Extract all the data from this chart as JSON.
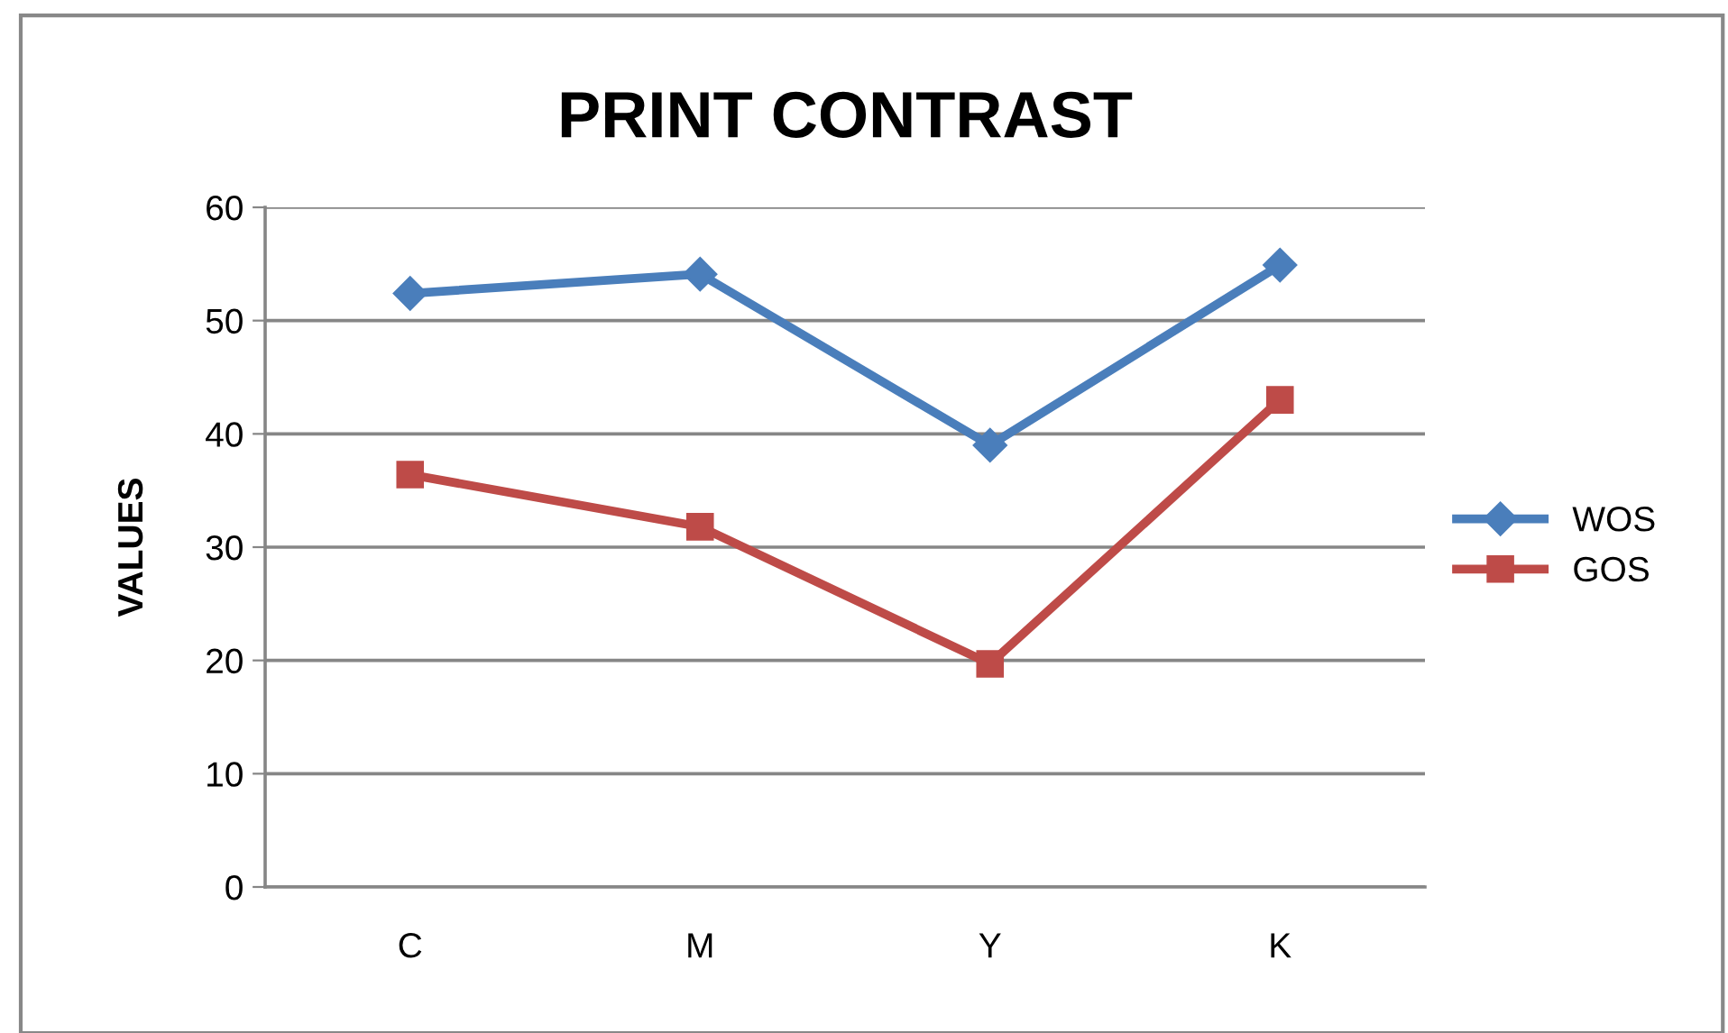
{
  "chart_data": {
    "type": "line",
    "title": "PRINT CONTRAST",
    "ylabel": "VALUES",
    "categories": [
      "C",
      "M",
      "Y",
      "K"
    ],
    "series": [
      {
        "name": "WOS",
        "color": "#4a7ebb",
        "marker": "diamond",
        "values": [
          52.4,
          54.1,
          39.0,
          54.9
        ]
      },
      {
        "name": "GOS",
        "color": "#be4b48",
        "marker": "square",
        "values": [
          36.4,
          31.8,
          19.7,
          43.0
        ]
      }
    ],
    "ylim": [
      0,
      60
    ],
    "yticks": [
      0,
      10,
      20,
      30,
      40,
      50,
      60
    ],
    "grid": "y",
    "legend": "right",
    "line_style": "solid"
  }
}
